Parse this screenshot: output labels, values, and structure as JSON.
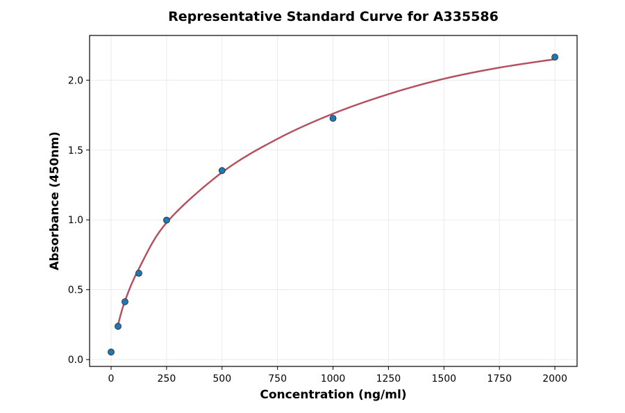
{
  "chart_data": {
    "type": "scatter",
    "title": "Representative Standard Curve for A335586",
    "xlabel": "Concentration (ng/ml)",
    "ylabel": "Absorbance (450nm)",
    "xlim": [
      -97,
      2100
    ],
    "ylim": [
      -0.049,
      2.32
    ],
    "xticks": [
      0,
      250,
      500,
      750,
      1000,
      1250,
      1500,
      1750,
      2000
    ],
    "yticks": [
      0.0,
      0.5,
      1.0,
      1.5,
      2.0
    ],
    "ytick_labels": [
      "0.0",
      "0.5",
      "1.0",
      "1.5",
      "2.0"
    ],
    "grid": true,
    "points": {
      "x": [
        0,
        31.25,
        62.5,
        125,
        250,
        500,
        1000,
        2000
      ],
      "y": [
        0.054,
        0.238,
        0.414,
        0.618,
        0.998,
        1.353,
        1.727,
        2.165
      ],
      "color": "#1f77b4"
    },
    "fit_curve": {
      "x": [
        31.25,
        62.5,
        125,
        250,
        500,
        750,
        1000,
        1250,
        1500,
        1750,
        2000
      ],
      "y": [
        0.25,
        0.42,
        0.65,
        0.98,
        1.34,
        1.58,
        1.76,
        1.9,
        2.01,
        2.09,
        2.15
      ],
      "color": "#b5505f"
    }
  }
}
